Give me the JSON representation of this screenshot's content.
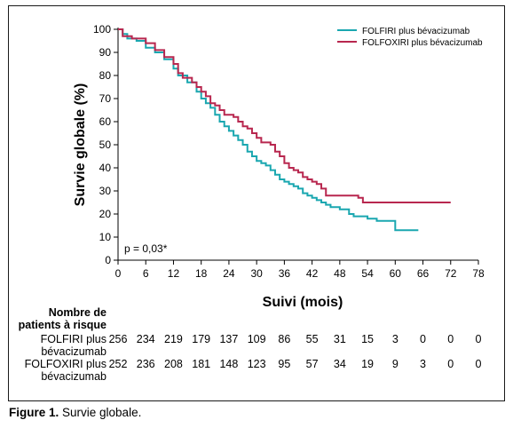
{
  "caption": {
    "label": "Figure 1.",
    "text": " Survie globale."
  },
  "chart_data": {
    "type": "line",
    "ylabel": "Survie globale (%)",
    "xlabel": "Suivi (mois)",
    "xlim": [
      0,
      78
    ],
    "ylim": [
      0,
      100
    ],
    "xticks": [
      0,
      6,
      12,
      18,
      24,
      30,
      36,
      42,
      48,
      54,
      60,
      66,
      72,
      78
    ],
    "yticks": [
      0,
      10,
      20,
      30,
      40,
      50,
      60,
      70,
      80,
      90,
      100
    ],
    "annotation": "p = 0,03*",
    "legend_position": "top-right",
    "series": [
      {
        "name": "FOLFIRI plus bévacizumab",
        "color": "#1aa7b0",
        "points": [
          [
            0,
            100
          ],
          [
            1,
            98
          ],
          [
            2,
            96
          ],
          [
            4,
            95
          ],
          [
            6,
            92
          ],
          [
            8,
            90
          ],
          [
            10,
            87
          ],
          [
            12,
            83
          ],
          [
            13,
            80
          ],
          [
            15,
            77
          ],
          [
            17,
            73
          ],
          [
            18,
            70
          ],
          [
            19,
            68
          ],
          [
            20,
            66
          ],
          [
            21,
            63
          ],
          [
            22,
            60
          ],
          [
            23,
            58
          ],
          [
            24,
            56
          ],
          [
            25,
            54
          ],
          [
            26,
            52
          ],
          [
            27,
            50
          ],
          [
            28,
            47
          ],
          [
            29,
            45
          ],
          [
            30,
            43
          ],
          [
            31,
            42
          ],
          [
            32,
            41
          ],
          [
            33,
            39
          ],
          [
            34,
            37
          ],
          [
            35,
            35
          ],
          [
            36,
            34
          ],
          [
            37,
            33
          ],
          [
            38,
            32
          ],
          [
            39,
            31
          ],
          [
            40,
            29
          ],
          [
            41,
            28
          ],
          [
            42,
            27
          ],
          [
            43,
            26
          ],
          [
            44,
            25
          ],
          [
            45,
            24
          ],
          [
            46,
            23
          ],
          [
            48,
            22
          ],
          [
            50,
            20
          ],
          [
            51,
            19
          ],
          [
            54,
            18
          ],
          [
            56,
            17
          ],
          [
            60,
            13
          ],
          [
            65,
            13
          ]
        ]
      },
      {
        "name": "FOLFOXIRI plus bévacizumab",
        "color": "#b8274f",
        "points": [
          [
            0,
            100
          ],
          [
            1,
            97
          ],
          [
            3,
            96
          ],
          [
            6,
            94
          ],
          [
            8,
            91
          ],
          [
            10,
            88
          ],
          [
            12,
            85
          ],
          [
            13,
            81
          ],
          [
            14,
            79
          ],
          [
            16,
            77
          ],
          [
            17,
            75
          ],
          [
            18,
            73
          ],
          [
            19,
            71
          ],
          [
            20,
            68
          ],
          [
            21,
            67
          ],
          [
            22,
            65
          ],
          [
            23,
            63
          ],
          [
            25,
            62
          ],
          [
            26,
            60
          ],
          [
            27,
            58
          ],
          [
            28,
            57
          ],
          [
            29,
            55
          ],
          [
            30,
            53
          ],
          [
            31,
            51
          ],
          [
            33,
            50
          ],
          [
            34,
            47
          ],
          [
            35,
            45
          ],
          [
            36,
            42
          ],
          [
            37,
            40
          ],
          [
            38,
            39
          ],
          [
            39,
            38
          ],
          [
            40,
            36
          ],
          [
            41,
            35
          ],
          [
            42,
            34
          ],
          [
            43,
            33
          ],
          [
            44,
            31
          ],
          [
            45,
            28
          ],
          [
            48,
            28
          ],
          [
            52,
            27
          ],
          [
            53,
            25
          ],
          [
            60,
            25
          ],
          [
            72,
            25
          ]
        ]
      }
    ],
    "risk_table": {
      "title_line1": "Nombre de",
      "title_line2": "patients à risque",
      "x": [
        0,
        6,
        12,
        18,
        24,
        30,
        36,
        42,
        48,
        54,
        60,
        66,
        72,
        78
      ],
      "rows": [
        {
          "label_line1": "FOLFIRI plus",
          "label_line2": "bévacizumab",
          "values": [
            "256",
            "234",
            "219",
            "179",
            "137",
            "109",
            "86",
            "55",
            "31",
            "15",
            "3",
            "0",
            "0",
            "0"
          ]
        },
        {
          "label_line1": "FOLFOXIRI plus",
          "label_line2": "bévacizumab",
          "values": [
            "252",
            "236",
            "208",
            "181",
            "148",
            "123",
            "95",
            "57",
            "34",
            "19",
            "9",
            "3",
            "0",
            "0"
          ]
        }
      ]
    }
  }
}
